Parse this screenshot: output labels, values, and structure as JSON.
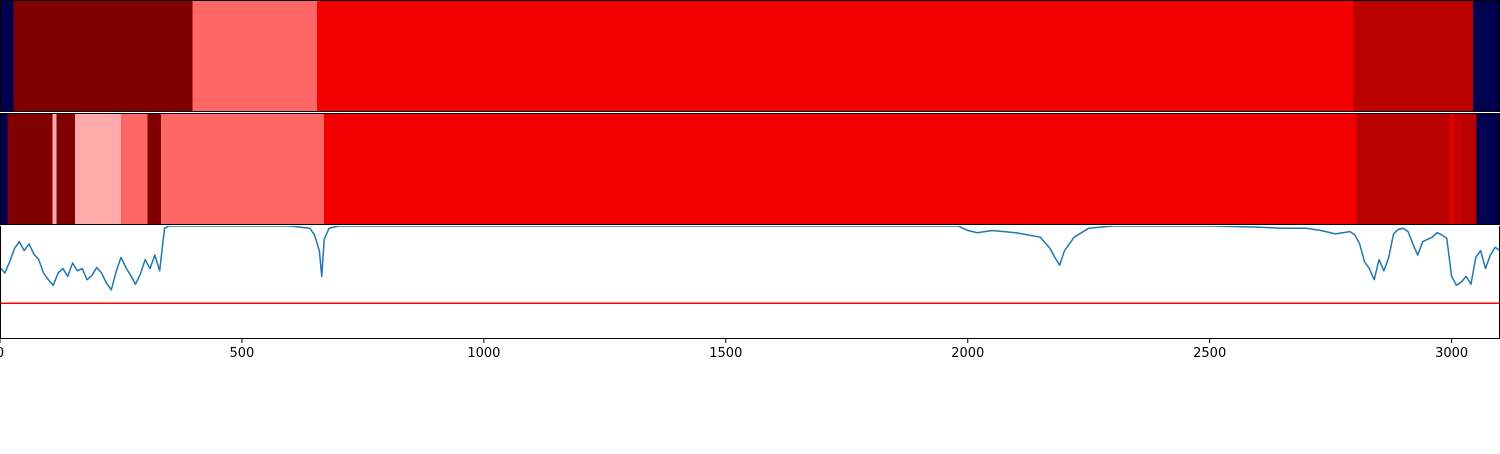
{
  "chart_data": {
    "type": "heatmap",
    "title": "",
    "xlabel": "",
    "ylabel": "",
    "xlim": [
      0,
      3100
    ],
    "x_ticks": [
      0,
      500,
      1000,
      1500,
      2000,
      2500,
      3000
    ],
    "x_tick_labels": [
      "0",
      "500",
      "1000",
      "1500",
      "2000",
      "2500",
      "3000"
    ],
    "grid": false,
    "legend": "none",
    "colors": {
      "background_class": "#000050",
      "dark_red": "#800000",
      "light_red": "#ff6666",
      "pink": "#ffaaaa",
      "red": "#f50000",
      "medium_dark_red": "#bb0000",
      "line": "#1f77b4",
      "threshold": "#ff0000"
    },
    "segment_tracks": [
      {
        "name": "",
        "segments": [
          {
            "start": 0,
            "end": 28,
            "color": "#000050"
          },
          {
            "start": 28,
            "end": 398,
            "color": "#800000"
          },
          {
            "start": 398,
            "end": 655,
            "color": "#ff6666"
          },
          {
            "start": 655,
            "end": 2797,
            "color": "#f50000"
          },
          {
            "start": 2797,
            "end": 3044,
            "color": "#bb0000"
          },
          {
            "start": 3044,
            "end": 3100,
            "color": "#000050"
          }
        ]
      },
      {
        "name": "",
        "segments": [
          {
            "start": 0,
            "end": 15,
            "color": "#000050"
          },
          {
            "start": 15,
            "end": 108,
            "color": "#800000"
          },
          {
            "start": 108,
            "end": 117,
            "color": "#ffaaaa"
          },
          {
            "start": 117,
            "end": 155,
            "color": "#800000"
          },
          {
            "start": 155,
            "end": 250,
            "color": "#ffaaaa"
          },
          {
            "start": 250,
            "end": 305,
            "color": "#ff6666"
          },
          {
            "start": 305,
            "end": 333,
            "color": "#800000"
          },
          {
            "start": 333,
            "end": 670,
            "color": "#ff6666"
          },
          {
            "start": 670,
            "end": 2803,
            "color": "#f50000"
          },
          {
            "start": 2803,
            "end": 2997,
            "color": "#bb0000"
          },
          {
            "start": 2997,
            "end": 3006,
            "color": "#dd0000"
          },
          {
            "start": 3006,
            "end": 3013,
            "color": "#bb0000"
          },
          {
            "start": 3013,
            "end": 3016,
            "color": "#dd0000"
          },
          {
            "start": 3016,
            "end": 3051,
            "color": "#bb0000"
          },
          {
            "start": 3051,
            "end": 3100,
            "color": "#000050"
          }
        ]
      }
    ],
    "line_series": {
      "name": "",
      "ylim": [
        0,
        1
      ],
      "threshold": 0.31,
      "x": [
        0,
        10,
        20,
        30,
        40,
        50,
        60,
        70,
        80,
        90,
        100,
        110,
        120,
        130,
        140,
        150,
        160,
        170,
        180,
        190,
        200,
        210,
        220,
        230,
        240,
        250,
        260,
        270,
        280,
        290,
        300,
        310,
        320,
        330,
        340,
        350,
        360,
        400,
        500,
        600,
        640,
        650,
        660,
        665,
        670,
        680,
        700,
        800,
        1000,
        1500,
        1980,
        2000,
        2020,
        2050,
        2100,
        2150,
        2170,
        2180,
        2190,
        2200,
        2220,
        2250,
        2300,
        2400,
        2500,
        2600,
        2650,
        2700,
        2730,
        2760,
        2790,
        2800,
        2810,
        2820,
        2830,
        2840,
        2850,
        2860,
        2870,
        2880,
        2890,
        2900,
        2910,
        2920,
        2930,
        2940,
        2950,
        2960,
        2970,
        2980,
        2990,
        3000,
        3010,
        3020,
        3030,
        3040,
        3050,
        3060,
        3070,
        3080,
        3090,
        3100
      ],
      "y": [
        0.63,
        0.58,
        0.68,
        0.8,
        0.86,
        0.78,
        0.84,
        0.75,
        0.7,
        0.58,
        0.52,
        0.47,
        0.58,
        0.62,
        0.55,
        0.67,
        0.6,
        0.62,
        0.52,
        0.56,
        0.63,
        0.58,
        0.49,
        0.43,
        0.59,
        0.72,
        0.63,
        0.56,
        0.48,
        0.57,
        0.7,
        0.62,
        0.74,
        0.6,
        0.98,
        1.0,
        1.0,
        1.0,
        1.0,
        1.0,
        0.98,
        0.92,
        0.78,
        0.55,
        0.88,
        0.98,
        1.0,
        1.0,
        1.0,
        1.0,
        1.0,
        0.96,
        0.94,
        0.96,
        0.94,
        0.9,
        0.8,
        0.72,
        0.65,
        0.78,
        0.9,
        0.98,
        1.0,
        1.0,
        1.0,
        0.99,
        0.98,
        0.98,
        0.96,
        0.93,
        0.95,
        0.92,
        0.84,
        0.68,
        0.62,
        0.52,
        0.7,
        0.6,
        0.72,
        0.93,
        0.97,
        0.98,
        0.95,
        0.84,
        0.74,
        0.86,
        0.88,
        0.9,
        0.94,
        0.92,
        0.89,
        0.55,
        0.47,
        0.5,
        0.55,
        0.48,
        0.72,
        0.78,
        0.62,
        0.74,
        0.81,
        0.78
      ]
    }
  }
}
